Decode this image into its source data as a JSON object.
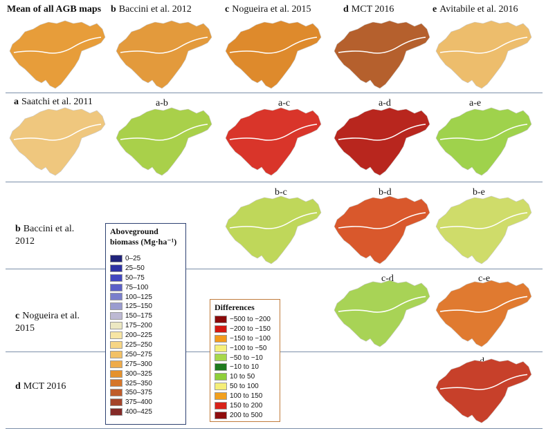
{
  "column_headers": [
    {
      "letter": "",
      "text": "Mean of all AGB maps",
      "bold": true
    },
    {
      "letter": "b",
      "text": "Baccini et al. 2012"
    },
    {
      "letter": "c",
      "text": "Nogueira et al. 2015"
    },
    {
      "letter": "d",
      "text": "MCT 2016"
    },
    {
      "letter": "e",
      "text": "Avitabile et al. 2016"
    }
  ],
  "row_labels": {
    "a": {
      "letter": "a",
      "text": "Saatchi et al. 2011"
    },
    "b": {
      "letter": "b",
      "text": "Baccini et al.",
      "text2": "2012"
    },
    "c": {
      "letter": "c",
      "text": "Nogueira et al.",
      "text2": "2015"
    },
    "d": {
      "letter": "d",
      "text": "MCT 2016"
    }
  },
  "diff_labels": [
    "a-b",
    "a-c",
    "a-d",
    "a-e",
    "b-c",
    "b-d",
    "b-e",
    "c-d",
    "c-e",
    "d-e"
  ],
  "agb_legend": {
    "title_line1": "Aboveground",
    "title_line2": "biomass (Mg·ha⁻¹)",
    "border_color": "#2c4070",
    "items": [
      {
        "label": "0–25",
        "color": "#20237a"
      },
      {
        "label": "25–50",
        "color": "#2e32a4"
      },
      {
        "label": "50–75",
        "color": "#4247c0"
      },
      {
        "label": "75–100",
        "color": "#5b60c8"
      },
      {
        "label": "100–125",
        "color": "#7a7fcc"
      },
      {
        "label": "125–150",
        "color": "#9a9ccf"
      },
      {
        "label": "150–175",
        "color": "#bdb9d3"
      },
      {
        "label": "175–200",
        "color": "#ece8c2"
      },
      {
        "label": "200–225",
        "color": "#f7e5a3"
      },
      {
        "label": "225–250",
        "color": "#f6d584"
      },
      {
        "label": "250–275",
        "color": "#f2c165"
      },
      {
        "label": "275–300",
        "color": "#eeab4a"
      },
      {
        "label": "300–325",
        "color": "#e5922e"
      },
      {
        "label": "325–350",
        "color": "#d5762a"
      },
      {
        "label": "350–375",
        "color": "#bf5c2a"
      },
      {
        "label": "375–400",
        "color": "#a4442a"
      },
      {
        "label": "400–425",
        "color": "#842a27"
      }
    ]
  },
  "diff_legend": {
    "title": "Differences",
    "border_color": "#c07a3a",
    "items": [
      {
        "label": "−500 to −200",
        "color": "#8b0a0a"
      },
      {
        "label": "−200 to −150",
        "color": "#d41a12"
      },
      {
        "label": "−150 to −100",
        "color": "#f39a1c"
      },
      {
        "label": "−100 to −50",
        "color": "#f6f07a"
      },
      {
        "label": "−50 to −10",
        "color": "#a7d84a"
      },
      {
        "label": "−10 to 10",
        "color": "#1e7a1e"
      },
      {
        "label": "10 to 50",
        "color": "#8fcf3a"
      },
      {
        "label": "50 to 100",
        "color": "#f5ee78"
      },
      {
        "label": "100 to 150",
        "color": "#f2a01e"
      },
      {
        "label": "150 to 200",
        "color": "#d8231a"
      },
      {
        "label": "200 to 500",
        "color": "#8e0d0d"
      }
    ]
  },
  "map_fills": {
    "mean": "#e79d3a",
    "baccini": "#e39a3c",
    "nogueira": "#de8a2c",
    "mct": "#b5602d",
    "avitabile": "#edbd6c",
    "saatchi": "#efc77e",
    "ab": "#a9d04a",
    "ac": "#d9352a",
    "ad": "#b8261e",
    "ae": "#9fd24c",
    "bc": "#bfd75a",
    "bd": "#d9582c",
    "be": "#cfdc6a",
    "cd": "#a8d356",
    "ce": "#e07a30",
    "de": "#c7402a"
  }
}
